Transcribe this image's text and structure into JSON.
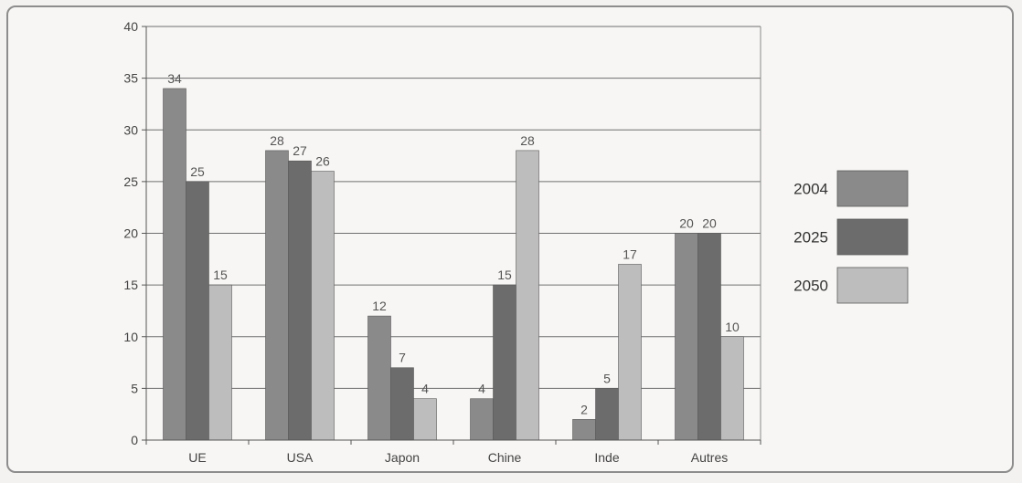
{
  "chart_data": {
    "type": "bar",
    "categories": [
      "UE",
      "USA",
      "Japon",
      "Chine",
      "Inde",
      "Autres"
    ],
    "series": [
      {
        "name": "2004",
        "color": "#8a8a8a",
        "values": [
          34,
          28,
          12,
          4,
          2,
          20
        ]
      },
      {
        "name": "2025",
        "color": "#6c6c6c",
        "values": [
          25,
          27,
          7,
          15,
          5,
          20
        ]
      },
      {
        "name": "2050",
        "color": "#bdbdbd",
        "values": [
          15,
          26,
          4,
          28,
          17,
          10
        ]
      }
    ],
    "ylim": [
      0,
      40
    ],
    "yticks": [
      0,
      5,
      10,
      15,
      20,
      25,
      30,
      35,
      40
    ],
    "grid": true,
    "legend_position": "right",
    "title": "",
    "xlabel": "",
    "ylabel": ""
  }
}
